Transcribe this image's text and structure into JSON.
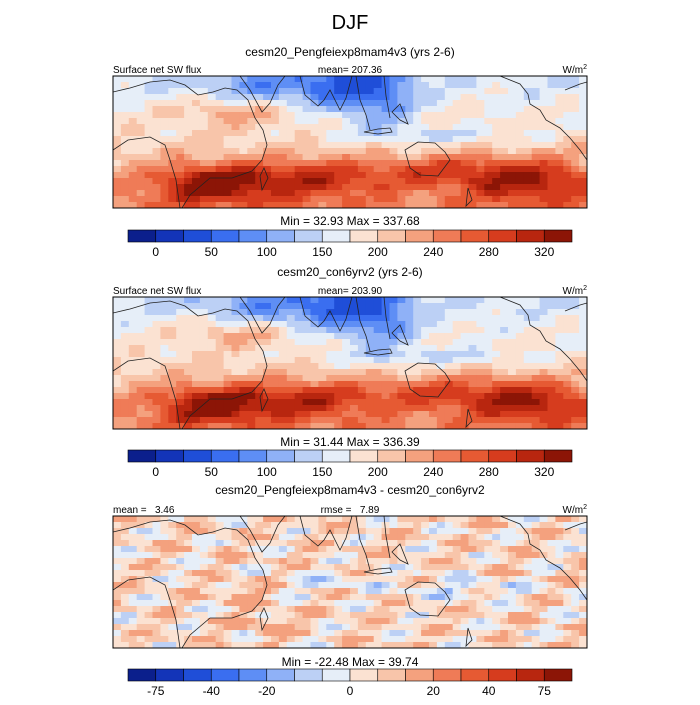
{
  "figure": {
    "title": "DJF"
  },
  "chart_data": [
    {
      "type": "heatmap",
      "id": "p1",
      "title": "cesm20_Pengfeiexp8mam4v3 (yrs 2-6)",
      "left_label": "Surface net SW flux",
      "center_label": "mean= 207.36",
      "units": "W/m",
      "units_sup": "2",
      "minmax": "Min =  32.93 Max = 337.68",
      "field": {
        "kind": "abs",
        "min": 32.93,
        "max": 337.68,
        "mean": 207.36,
        "lon_range": [
          30,
          300
        ],
        "lat_range": [
          -40,
          40
        ]
      },
      "colorbar": {
        "levels": [
          -25,
          0,
          25,
          50,
          75,
          100,
          125,
          150,
          175,
          200,
          220,
          240,
          260,
          280,
          300,
          320,
          340
        ],
        "tick_labels": [
          "0",
          "50",
          "100",
          "150",
          "200",
          "240",
          "280",
          "320"
        ],
        "tick_values": [
          0,
          50,
          100,
          150,
          200,
          240,
          280,
          320
        ],
        "colors": [
          "#0b1f8c",
          "#1334b8",
          "#1f4ed8",
          "#3a6ef0",
          "#5e8ef5",
          "#8fb1f7",
          "#bcd0f5",
          "#e6eef8",
          "#fbe2d2",
          "#f8c5aa",
          "#f4a17e",
          "#ef7b57",
          "#e65a33",
          "#d63c1e",
          "#b8260f",
          "#8c1506"
        ]
      }
    },
    {
      "type": "heatmap",
      "id": "p2",
      "title": "cesm20_con6yrv2 (yrs 2-6)",
      "left_label": "Surface net SW flux",
      "center_label": "mean= 203.90",
      "units": "W/m",
      "units_sup": "2",
      "minmax": "Min =  31.44 Max = 336.39",
      "field": {
        "kind": "abs",
        "min": 31.44,
        "max": 336.39,
        "mean": 203.9,
        "lon_range": [
          30,
          300
        ],
        "lat_range": [
          -40,
          40
        ]
      },
      "colorbar": {
        "levels": [
          -25,
          0,
          25,
          50,
          75,
          100,
          125,
          150,
          175,
          200,
          220,
          240,
          260,
          280,
          300,
          320,
          340
        ],
        "tick_labels": [
          "0",
          "50",
          "100",
          "150",
          "200",
          "240",
          "280",
          "320"
        ],
        "tick_values": [
          0,
          50,
          100,
          150,
          200,
          240,
          280,
          320
        ],
        "colors": [
          "#0b1f8c",
          "#1334b8",
          "#1f4ed8",
          "#3a6ef0",
          "#5e8ef5",
          "#8fb1f7",
          "#bcd0f5",
          "#e6eef8",
          "#fbe2d2",
          "#f8c5aa",
          "#f4a17e",
          "#ef7b57",
          "#e65a33",
          "#d63c1e",
          "#b8260f",
          "#8c1506"
        ]
      }
    },
    {
      "type": "heatmap",
      "id": "p3",
      "title": "cesm20_Pengfeiexp8mam4v3 - cesm20_con6yrv2",
      "left_label": "mean =   3.46",
      "center_label": "rmse =   7.89",
      "units": "W/m",
      "units_sup": "2",
      "minmax": "Min = -22.48 Max =  39.74",
      "field": {
        "kind": "diff",
        "min": -22.48,
        "max": 39.74,
        "mean": 3.46,
        "rmse": 7.89,
        "lon_range": [
          30,
          300
        ],
        "lat_range": [
          -40,
          40
        ]
      },
      "colorbar": {
        "levels": [
          -100,
          -75,
          -60,
          -40,
          -30,
          -20,
          -10,
          -5,
          0,
          5,
          10,
          20,
          30,
          40,
          60,
          75,
          100
        ],
        "tick_labels": [
          "-75",
          "-40",
          "-20",
          "0",
          "20",
          "40",
          "75"
        ],
        "tick_values": [
          -75,
          -40,
          -20,
          0,
          20,
          40,
          75
        ],
        "colors": [
          "#0b1f8c",
          "#1334b8",
          "#1f4ed8",
          "#3a6ef0",
          "#5e8ef5",
          "#8fb1f7",
          "#bcd0f5",
          "#e6eef8",
          "#fbe2d2",
          "#f8c5aa",
          "#f4a17e",
          "#ef7b57",
          "#e65a33",
          "#d63c1e",
          "#b8260f",
          "#8c1506"
        ]
      }
    }
  ]
}
